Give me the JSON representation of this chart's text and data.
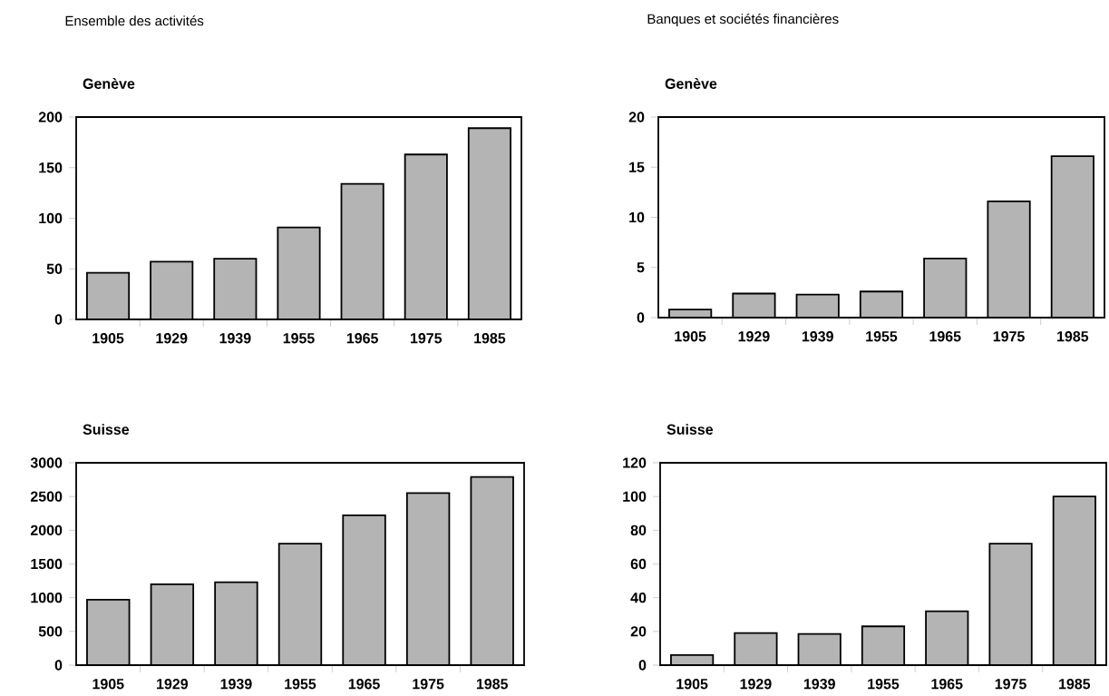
{
  "chart_data": [
    {
      "type": "bar",
      "subtitle": "Ensemble des activités",
      "title": "Genève",
      "categories": [
        "1905",
        "1929",
        "1939",
        "1955",
        "1965",
        "1975",
        "1985"
      ],
      "values": [
        46,
        57,
        60,
        91,
        134,
        163,
        189
      ],
      "color": "#b4b4b4",
      "ylim": [
        0,
        200
      ],
      "yticks": [
        0,
        50,
        100,
        150,
        200
      ]
    },
    {
      "type": "bar",
      "subtitle": "Banques et sociétés financières",
      "title": "Genève",
      "categories": [
        "1905",
        "1929",
        "1939",
        "1955",
        "1965",
        "1975",
        "1985"
      ],
      "values": [
        0.8,
        2.4,
        2.3,
        2.6,
        5.9,
        11.6,
        16.1
      ],
      "color": "#b4b4b4",
      "ylim": [
        0,
        20
      ],
      "yticks": [
        0,
        5,
        10,
        15,
        20
      ]
    },
    {
      "type": "bar",
      "title": "Suisse",
      "categories": [
        "1905",
        "1929",
        "1939",
        "1955",
        "1965",
        "1975",
        "1985"
      ],
      "values": [
        970,
        1200,
        1230,
        1800,
        2220,
        2550,
        2790
      ],
      "color": "#b4b4b4",
      "ylim": [
        0,
        3000
      ],
      "yticks": [
        0,
        500,
        1000,
        1500,
        2000,
        2500,
        3000
      ]
    },
    {
      "type": "bar",
      "title": "Suisse",
      "categories": [
        "1905",
        "1929",
        "1939",
        "1955",
        "1965",
        "1975",
        "1985"
      ],
      "values": [
        6,
        19,
        18.5,
        23,
        32,
        72,
        100
      ],
      "color": "#b4b4b4",
      "ylim": [
        0,
        120
      ],
      "yticks": [
        0,
        20,
        40,
        60,
        80,
        100,
        120
      ]
    }
  ]
}
